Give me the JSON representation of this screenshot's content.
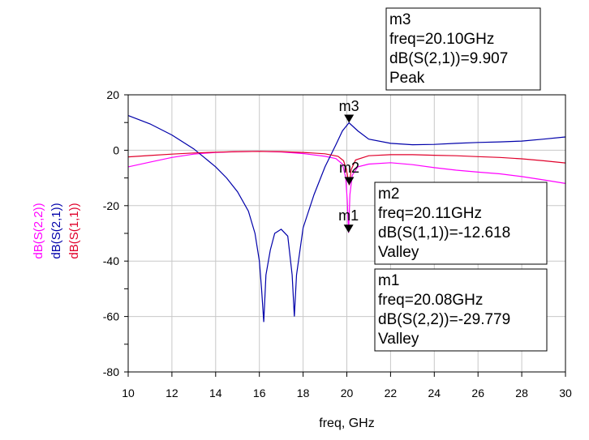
{
  "chart_data": {
    "type": "line",
    "title": "",
    "xlabel": "freq, GHz",
    "xlim": [
      10,
      30
    ],
    "ylim": [
      -80,
      20
    ],
    "x_ticks": [
      "10",
      "12",
      "14",
      "16",
      "18",
      "20",
      "22",
      "24",
      "26",
      "28",
      "30"
    ],
    "y_ticks": [
      "20",
      "0",
      "-20",
      "-40",
      "-60",
      "-80"
    ],
    "grid": true,
    "series": [
      {
        "name": "dB(S(2,2))",
        "color": "#ff00ff",
        "points": [
          [
            10,
            -6
          ],
          [
            11,
            -4.3
          ],
          [
            12,
            -2.6
          ],
          [
            13,
            -1.4
          ],
          [
            14,
            -0.8
          ],
          [
            15,
            -0.5
          ],
          [
            16,
            -0.4
          ],
          [
            17,
            -0.6
          ],
          [
            18,
            -1.2
          ],
          [
            19,
            -2.2
          ],
          [
            19.5,
            -3
          ],
          [
            19.8,
            -5
          ],
          [
            19.95,
            -10
          ],
          [
            20.02,
            -18
          ],
          [
            20.08,
            -29.8
          ],
          [
            20.14,
            -16
          ],
          [
            20.25,
            -9
          ],
          [
            20.5,
            -6
          ],
          [
            21,
            -5
          ],
          [
            22,
            -4.5
          ],
          [
            23,
            -5.2
          ],
          [
            24,
            -6.3
          ],
          [
            25,
            -7.2
          ],
          [
            26,
            -7.9
          ],
          [
            27,
            -8.5
          ],
          [
            28,
            -9.5
          ],
          [
            29,
            -10.7
          ],
          [
            30,
            -12
          ]
        ]
      },
      {
        "name": "dB(S(2,1))",
        "color": "#0000aa",
        "points": [
          [
            10,
            12.5
          ],
          [
            11,
            9.5
          ],
          [
            12,
            5.5
          ],
          [
            13,
            0.5
          ],
          [
            14,
            -6
          ],
          [
            14.5,
            -10
          ],
          [
            15,
            -15
          ],
          [
            15.5,
            -22
          ],
          [
            15.8,
            -30
          ],
          [
            16,
            -40
          ],
          [
            16.1,
            -50
          ],
          [
            16.2,
            -62
          ],
          [
            16.3,
            -45
          ],
          [
            16.5,
            -36
          ],
          [
            16.7,
            -30
          ],
          [
            17,
            -28.5
          ],
          [
            17.3,
            -31
          ],
          [
            17.5,
            -45
          ],
          [
            17.6,
            -60
          ],
          [
            17.7,
            -45
          ],
          [
            18,
            -28
          ],
          [
            18.5,
            -16
          ],
          [
            19,
            -6
          ],
          [
            19.5,
            2
          ],
          [
            19.8,
            7
          ],
          [
            20.1,
            9.9
          ],
          [
            20.5,
            7
          ],
          [
            21,
            4
          ],
          [
            22,
            2.5
          ],
          [
            23,
            2
          ],
          [
            24,
            2.1
          ],
          [
            25,
            2.5
          ],
          [
            26,
            2.8
          ],
          [
            27,
            3
          ],
          [
            28,
            3.3
          ],
          [
            29,
            4
          ],
          [
            30,
            4.8
          ]
        ]
      },
      {
        "name": "dB(S(1,1))",
        "color": "#e0002a",
        "points": [
          [
            10,
            -2.4
          ],
          [
            11,
            -1.9
          ],
          [
            12,
            -1.4
          ],
          [
            13,
            -1
          ],
          [
            14,
            -0.7
          ],
          [
            15,
            -0.5
          ],
          [
            16,
            -0.4
          ],
          [
            17,
            -0.5
          ],
          [
            18,
            -0.8
          ],
          [
            19,
            -1.3
          ],
          [
            19.6,
            -2.2
          ],
          [
            19.85,
            -3.8
          ],
          [
            19.98,
            -7
          ],
          [
            20.05,
            -10
          ],
          [
            20.11,
            -12.6
          ],
          [
            20.2,
            -7
          ],
          [
            20.4,
            -3.5
          ],
          [
            21,
            -2
          ],
          [
            22,
            -1.6
          ],
          [
            23,
            -1.6
          ],
          [
            24,
            -1.8
          ],
          [
            25,
            -2
          ],
          [
            26,
            -2.3
          ],
          [
            27,
            -2.6
          ],
          [
            28,
            -3.1
          ],
          [
            29,
            -3.8
          ],
          [
            30,
            -4.6
          ]
        ]
      }
    ],
    "markers": [
      {
        "id": "m3",
        "x": 20.1,
        "y": 9.907,
        "lines": [
          "m3",
          "freq=20.10GHz",
          "dB(S(2,1))=9.907",
          "Peak"
        ]
      },
      {
        "id": "m2",
        "x": 20.11,
        "y": -12.618,
        "lines": [
          "m2",
          "freq=20.11GHz",
          "dB(S(1,1))=-12.618",
          "Valley"
        ]
      },
      {
        "id": "m1",
        "x": 20.08,
        "y": -29.779,
        "lines": [
          "m1",
          "freq=20.08GHz",
          "dB(S(2,2))=-29.779",
          "Valley"
        ]
      }
    ]
  }
}
